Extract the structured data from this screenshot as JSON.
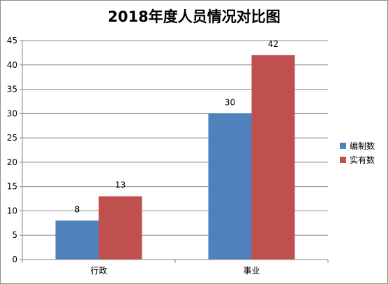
{
  "chart_data": {
    "type": "bar",
    "title": "2018年度人员情况对比图",
    "xlabel": "",
    "ylabel": "",
    "categories": [
      "行政",
      "事业"
    ],
    "series": [
      {
        "name": "编制数",
        "values": [
          8,
          30
        ],
        "color": "#4f81bd"
      },
      {
        "name": "实有数",
        "values": [
          13,
          42
        ],
        "color": "#c0504d"
      }
    ],
    "ylim": [
      0,
      45
    ],
    "yticks": [
      0,
      5,
      10,
      15,
      20,
      25,
      30,
      35,
      40,
      45
    ],
    "grid": true,
    "legend_position": "right",
    "data_labels": true
  }
}
